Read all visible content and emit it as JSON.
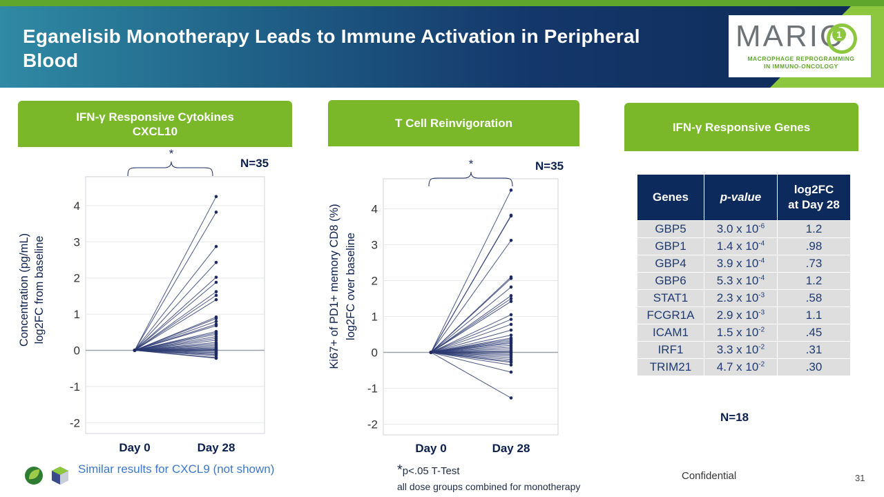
{
  "title": "Eganelisib Monotherapy Leads to Immune Activation in Peripheral Blood",
  "logo": {
    "text": "MARIO",
    "number": "1",
    "subtitle_1": "MACROPHAGE REPROGRAMMING",
    "subtitle_2": "IN IMMUNO-ONCOLOGY"
  },
  "panels": {
    "left": {
      "header_line1": "IFN-γ Responsive Cytokines",
      "header_line2": "CXCL10",
      "n": "N=35",
      "sig": "*"
    },
    "middle": {
      "header": "T Cell Reinvigoration",
      "n": "N=35",
      "sig": "*"
    },
    "right": {
      "header": "IFN-γ Responsive Genes",
      "n": "N=18"
    }
  },
  "chart_data": [
    {
      "type": "line",
      "title": "IFN-γ Responsive Cytokines CXCL10",
      "ylabel_line1": "Concentration (pg/mL)",
      "ylabel_line2": "log2FC from baseline",
      "categories": [
        "Day 0",
        "Day 28"
      ],
      "ylim": [
        -2.3,
        4.8
      ],
      "yticks": [
        4,
        3,
        2,
        1,
        0,
        -1,
        -2
      ],
      "day0": 0,
      "day28": [
        4.25,
        3.82,
        2.87,
        2.43,
        2.02,
        1.88,
        1.62,
        1.52,
        1.4,
        0.92,
        0.88,
        0.8,
        0.72,
        0.68,
        0.52,
        0.48,
        0.44,
        0.38,
        0.33,
        0.28,
        0.22,
        0.18,
        0.14,
        0.1,
        0.07,
        0.04,
        0.02,
        0.0,
        -0.03,
        -0.06,
        -0.09,
        -0.12,
        -0.15,
        -0.2,
        -0.22
      ]
    },
    {
      "type": "line",
      "title": "T Cell Reinvigoration",
      "ylabel_line1": "Ki67+ of PD1+ memory CD8 (%)",
      "ylabel_line2": "log2FC over baseline",
      "categories": [
        "Day 0",
        "Day 28"
      ],
      "ylim": [
        -2.3,
        4.8
      ],
      "yticks": [
        4,
        3,
        2,
        1,
        0,
        -1,
        -2
      ],
      "day0": 0,
      "day28": [
        4.52,
        3.82,
        3.8,
        3.12,
        2.1,
        2.06,
        1.82,
        1.58,
        1.5,
        1.42,
        1.05,
        0.92,
        0.78,
        0.62,
        0.48,
        0.4,
        0.36,
        0.32,
        0.28,
        0.25,
        0.2,
        0.15,
        0.1,
        0.05,
        0.02,
        -0.02,
        -0.06,
        -0.1,
        -0.15,
        -0.2,
        -0.25,
        -0.28,
        -0.35,
        -0.55,
        -1.27
      ]
    }
  ],
  "gene_table": {
    "headers": [
      "Genes",
      "p-value",
      "log2FC",
      "at Day 28"
    ],
    "rows": [
      {
        "gene": "GBP5",
        "p_base": "3.0 x 10",
        "p_exp": "-6",
        "fc": "1.2"
      },
      {
        "gene": "GBP1",
        "p_base": "1.4 x 10",
        "p_exp": "-4",
        "fc": ".98"
      },
      {
        "gene": "GBP4",
        "p_base": "3.9 x 10",
        "p_exp": "-4",
        "fc": ".73"
      },
      {
        "gene": "GBP6",
        "p_base": "5.3 x 10",
        "p_exp": "-4",
        "fc": "1.2"
      },
      {
        "gene": "STAT1",
        "p_base": "2.3 x 10",
        "p_exp": "-3",
        "fc": ".58"
      },
      {
        "gene": "FCGR1A",
        "p_base": "2.9 x 10",
        "p_exp": "-3",
        "fc": "1.1"
      },
      {
        "gene": "ICAM1",
        "p_base": "1.5 x 10",
        "p_exp": "-2",
        "fc": ".45"
      },
      {
        "gene": "IRF1",
        "p_base": "3.3 x 10",
        "p_exp": "-2",
        "fc": ".31"
      },
      {
        "gene": "TRIM21",
        "p_base": "4.7 x 10",
        "p_exp": "-2",
        "fc": ".30"
      }
    ]
  },
  "footer": {
    "similar": "Similar results for CXCL9 (not shown)",
    "star": "*",
    "p_note": "p<.05 T-Test",
    "dose_note": "all dose groups combined for monotherapy",
    "confidential": "Confidential",
    "page": "31"
  },
  "colors": {
    "green": "#7ab829",
    "navy": "#0d2a5c",
    "line": "#2c3a72"
  }
}
